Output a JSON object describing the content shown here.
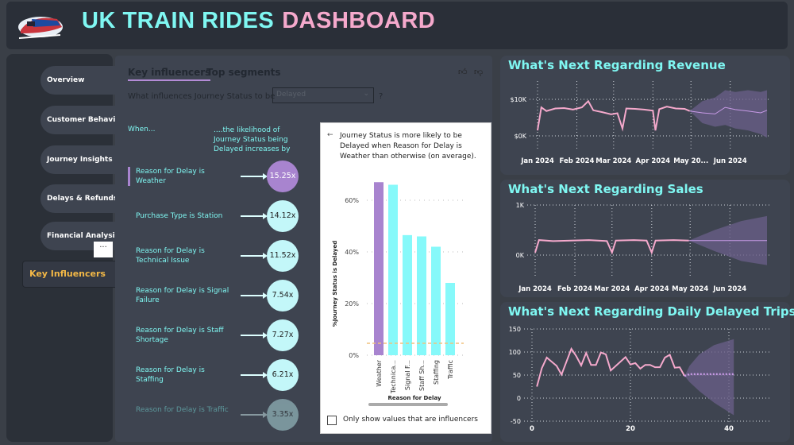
{
  "header": {
    "title_part1": "UK TRAIN RIDES",
    "title_part2": "DASHBOARD",
    "logo": "train-logo"
  },
  "sidebar": {
    "items": [
      {
        "label": "Overview"
      },
      {
        "label": "Customer Behavior"
      },
      {
        "label": "Journey Insights"
      },
      {
        "label": "Delays & Refunds"
      },
      {
        "label": "Financial Analysis"
      },
      {
        "label": "Key Influencers",
        "active": true
      }
    ],
    "more_label": "···"
  },
  "influencers": {
    "tabs": [
      "Key influencers",
      "Top segments"
    ],
    "question": "What influences Journey Status to be",
    "dropdown_value": "Delayed",
    "question_mark": "?",
    "col_when": "When...",
    "col_likelihood": "....the likelihood of Journey Status being Delayed increases by",
    "rows": [
      {
        "label": "Reason for Delay is Weather",
        "value": "15.25x",
        "selected": true
      },
      {
        "label": "Purchase Type is Station",
        "value": "14.12x"
      },
      {
        "label": "Reason for Delay is Technical Issue",
        "value": "11.52x"
      },
      {
        "label": "Reason for Delay is Signal Failure",
        "value": "7.54x"
      },
      {
        "label": "Reason for Delay is Staff Shortage",
        "value": "7.27x"
      },
      {
        "label": "Reason for Delay is Staffing",
        "value": "6.21x"
      },
      {
        "label": "Reason for Delay is Traffic",
        "value": "3.35x"
      }
    ],
    "detail_text": "Journey Status is more likely to be Delayed when Reason for Delay is Weather than otherwise (on average).",
    "checkbox_label": "Only show values that are influencers",
    "checkbox_checked": false
  },
  "colors": {
    "accent_cyan": "#7ff7f2",
    "accent_pink": "#f5a9cc",
    "selected_purple": "#a884cf",
    "bar_cyan": "#86f9fa",
    "forecast_band": "#6b5f8a",
    "active_nav": "#f3b846"
  },
  "chart_data": [
    {
      "type": "bar",
      "xlabel": "Reason for Delay",
      "ylabel": "%Journey Status is Delayed",
      "categories": [
        "Weather",
        "Technica...",
        "Signal F...",
        "Staff Sh...",
        "Staffing",
        "Traffic"
      ],
      "values": [
        67,
        66,
        46.5,
        46,
        42,
        28
      ],
      "highlight": "Weather",
      "average_line": 4.6,
      "yticks": [
        "0%",
        "20%",
        "40%",
        "60%"
      ],
      "ylim": [
        0,
        70
      ],
      "grid": true
    },
    {
      "type": "line",
      "title": "What's Next Regarding Revenue",
      "yticks": [
        {
          "v": 0,
          "label": "$0K"
        },
        {
          "v": 10,
          "label": "$10K"
        }
      ],
      "xticks": [
        "Jan 2024",
        "Feb 2024",
        "Mar 2024",
        "Apr 2024",
        "May 20...",
        "Jun 2024"
      ],
      "actual": [
        [
          "2024-01-01",
          1.5
        ],
        [
          "2024-01-04",
          7.8
        ],
        [
          "2024-01-08",
          6.8
        ],
        [
          "2024-01-15",
          7.5
        ],
        [
          "2024-01-22",
          7.6
        ],
        [
          "2024-01-29",
          7.2
        ],
        [
          "2024-02-05",
          7.8
        ],
        [
          "2024-02-10",
          9.5
        ],
        [
          "2024-02-14",
          7.0
        ],
        [
          "2024-02-21",
          6.5
        ],
        [
          "2024-02-28",
          5.9
        ],
        [
          "2024-03-04",
          6.2
        ],
        [
          "2024-03-08",
          2.0
        ],
        [
          "2024-03-11",
          7.5
        ],
        [
          "2024-03-18",
          7.4
        ],
        [
          "2024-03-25",
          7.2
        ],
        [
          "2024-04-01",
          6.9
        ],
        [
          "2024-04-03",
          1.5
        ],
        [
          "2024-04-06",
          7.3
        ],
        [
          "2024-04-12",
          8.0
        ],
        [
          "2024-04-19",
          7.5
        ],
        [
          "2024-04-26",
          7.4
        ],
        [
          "2024-04-30",
          6.8
        ]
      ],
      "forecast": [
        [
          "2024-04-30",
          6.8,
          6.8,
          6.8
        ],
        [
          "2024-05-10",
          6.3,
          3.5,
          9.5
        ],
        [
          "2024-05-20",
          6.0,
          2.5,
          10.5
        ],
        [
          "2024-05-28",
          7.8,
          3.0,
          12.5
        ],
        [
          "2024-06-05",
          7.2,
          2.0,
          12.0
        ],
        [
          "2024-06-15",
          6.8,
          1.5,
          12.5
        ],
        [
          "2024-06-25",
          6.3,
          0.5,
          12.0
        ],
        [
          "2024-06-30",
          7.0,
          -0.5,
          12.5
        ]
      ]
    },
    {
      "type": "line",
      "title": "What's Next Regarding Sales",
      "yticks": [
        {
          "v": 0,
          "label": "0K"
        },
        {
          "v": 1,
          "label": "1K"
        }
      ],
      "xticks": [
        "Jan 2024",
        "Feb 2024",
        "Mar 2024",
        "Apr 2024",
        "May 2024",
        "Jun 2024"
      ],
      "actual": [
        [
          "2024-01-01",
          0.05
        ],
        [
          "2024-01-04",
          0.3
        ],
        [
          "2024-01-15",
          0.28
        ],
        [
          "2024-01-29",
          0.29
        ],
        [
          "2024-02-12",
          0.3
        ],
        [
          "2024-02-26",
          0.28
        ],
        [
          "2024-03-01",
          0.05
        ],
        [
          "2024-03-04",
          0.29
        ],
        [
          "2024-03-18",
          0.3
        ],
        [
          "2024-03-28",
          0.29
        ],
        [
          "2024-04-01",
          0.05
        ],
        [
          "2024-04-04",
          0.29
        ],
        [
          "2024-04-18",
          0.3
        ],
        [
          "2024-04-30",
          0.29
        ]
      ],
      "forecast": [
        [
          "2024-04-30",
          0.29,
          0.29,
          0.29
        ],
        [
          "2024-05-20",
          0.29,
          0.08,
          0.5
        ],
        [
          "2024-06-10",
          0.29,
          -0.12,
          0.68
        ],
        [
          "2024-06-30",
          0.29,
          -0.2,
          0.78
        ]
      ]
    },
    {
      "type": "line",
      "title": "What's Next Regarding Daily Delayed Trips",
      "yticks": [
        {
          "v": -50,
          "label": "-50"
        },
        {
          "v": 0,
          "label": "0"
        },
        {
          "v": 50,
          "label": "50"
        },
        {
          "v": 100,
          "label": "100"
        },
        {
          "v": 150,
          "label": "150"
        }
      ],
      "xticks": [
        {
          "v": 0,
          "label": "0"
        },
        {
          "v": 20,
          "label": "20"
        },
        {
          "v": 40,
          "label": "40"
        }
      ],
      "actual": [
        [
          1,
          25
        ],
        [
          2,
          65
        ],
        [
          3,
          88
        ],
        [
          5,
          70
        ],
        [
          6,
          51
        ],
        [
          8,
          107
        ],
        [
          9,
          91
        ],
        [
          10,
          71
        ],
        [
          11,
          98
        ],
        [
          12,
          72
        ],
        [
          13,
          72
        ],
        [
          14,
          99
        ],
        [
          15,
          95
        ],
        [
          16,
          60
        ],
        [
          19,
          89
        ],
        [
          20,
          73
        ],
        [
          21,
          76
        ],
        [
          22,
          64
        ],
        [
          23,
          72
        ],
        [
          24,
          72
        ],
        [
          25,
          67
        ],
        [
          26,
          67
        ],
        [
          27,
          88
        ],
        [
          28,
          94
        ],
        [
          29,
          66
        ],
        [
          30,
          67
        ],
        [
          31,
          48
        ]
      ],
      "forecast": [
        [
          31,
          48,
          48,
          48
        ],
        [
          32,
          52,
          35,
          70
        ],
        [
          34,
          52,
          15,
          95
        ],
        [
          37,
          52,
          -10,
          115
        ],
        [
          41,
          52,
          -37,
          128
        ]
      ]
    }
  ]
}
